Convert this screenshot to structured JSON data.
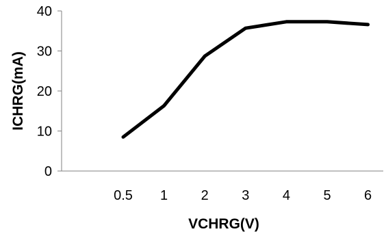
{
  "chart_data": {
    "type": "line",
    "title": "",
    "xlabel": "VCHRG(V)",
    "ylabel": "ICHRG(mA)",
    "categories": [
      "0.5",
      "1",
      "2",
      "3",
      "4",
      "5",
      "6"
    ],
    "series": [
      {
        "values": [
          8.5,
          16.3,
          28.7,
          35.7,
          37.3,
          37.3,
          36.6
        ]
      }
    ],
    "ylim": [
      0,
      40
    ],
    "yticks": [
      0,
      10,
      20,
      30,
      40
    ],
    "grid": false,
    "legend": "none",
    "line_color": "#000000",
    "axis_color": "#808080"
  }
}
